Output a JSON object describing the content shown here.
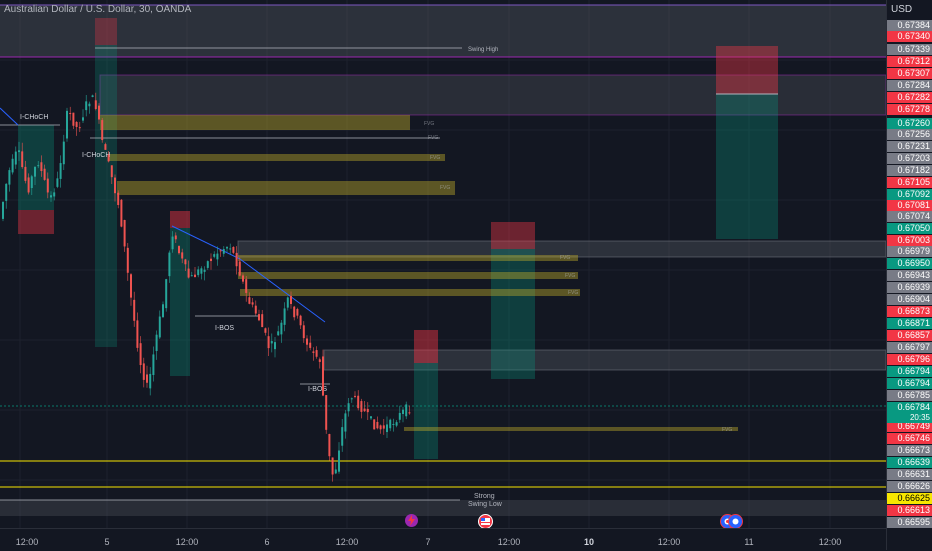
{
  "title": "Australian Dollar / U.S. Dollar, 30, OANDA",
  "currency": "USD",
  "countdown": "20:35",
  "price_scale": {
    "labels": [
      {
        "v": "0.67384",
        "c": "#787b86"
      },
      {
        "v": "0.67340",
        "c": "#f23645"
      },
      {
        "v": "0.67339",
        "c": "#787b86"
      },
      {
        "v": "0.67312",
        "c": "#f23645"
      },
      {
        "v": "0.67307",
        "c": "#f23645"
      },
      {
        "v": "0.67284",
        "c": "#787b86"
      },
      {
        "v": "0.67282",
        "c": "#f23645"
      },
      {
        "v": "0.67278",
        "c": "#f23645"
      },
      {
        "v": "0.67260",
        "c": "#089981"
      },
      {
        "v": "0.67256",
        "c": "#787b86"
      },
      {
        "v": "0.67231",
        "c": "#787b86"
      },
      {
        "v": "0.67203",
        "c": "#787b86"
      },
      {
        "v": "0.67182",
        "c": "#787b86"
      },
      {
        "v": "0.67105",
        "c": "#f23645"
      },
      {
        "v": "0.67092",
        "c": "#089981"
      },
      {
        "v": "0.67081",
        "c": "#f23645"
      },
      {
        "v": "0.67074",
        "c": "#787b86"
      },
      {
        "v": "0.67050",
        "c": "#089981"
      },
      {
        "v": "0.67003",
        "c": "#f23645"
      },
      {
        "v": "0.66979",
        "c": "#787b86"
      },
      {
        "v": "0.66950",
        "c": "#089981"
      },
      {
        "v": "0.66943",
        "c": "#787b86"
      },
      {
        "v": "0.66939",
        "c": "#787b86"
      },
      {
        "v": "0.66904",
        "c": "#787b86"
      },
      {
        "v": "0.66873",
        "c": "#f23645"
      },
      {
        "v": "0.66871",
        "c": "#089981"
      },
      {
        "v": "0.66857",
        "c": "#f23645"
      },
      {
        "v": "0.66797",
        "c": "#787b86"
      },
      {
        "v": "0.66796",
        "c": "#f23645"
      },
      {
        "v": "0.66794",
        "c": "#089981"
      },
      {
        "v": "0.66794",
        "c": "#089981"
      },
      {
        "v": "0.66785",
        "c": "#787b86"
      },
      {
        "v": "0.66784",
        "c": "#089981"
      },
      {
        "v": "0.66749",
        "c": "#f23645"
      },
      {
        "v": "0.66746",
        "c": "#f23645"
      },
      {
        "v": "0.66673",
        "c": "#787b86"
      },
      {
        "v": "0.66639",
        "c": "#089981"
      },
      {
        "v": "0.66631",
        "c": "#787b86"
      },
      {
        "v": "0.66626",
        "c": "#787b86"
      },
      {
        "v": "0.66625",
        "c": "#f7e600",
        "text_color": "#000000"
      },
      {
        "v": "0.66613",
        "c": "#f23645"
      },
      {
        "v": "0.66595",
        "c": "#787b86"
      }
    ]
  },
  "time_scale": {
    "labels": [
      {
        "t": "12:00",
        "bold": false
      },
      {
        "t": "5",
        "bold": false
      },
      {
        "t": "12:00",
        "bold": false
      },
      {
        "t": "6",
        "bold": false
      },
      {
        "t": "12:00",
        "bold": false
      },
      {
        "t": "7",
        "bold": false
      },
      {
        "t": "12:00",
        "bold": false
      },
      {
        "t": "10",
        "bold": true
      },
      {
        "t": "12:00",
        "bold": false
      },
      {
        "t": "11",
        "bold": false
      },
      {
        "t": "12:00",
        "bold": false
      }
    ]
  },
  "annotations": {
    "swing_high": "Swing High",
    "swing_low": "Swing Low",
    "strong": "Strong",
    "ichoch_1": "I-CHoCH",
    "ichoch_2": "I-CHoCH",
    "ibos_1": "I-BOS",
    "ibos_2": "I-BOS",
    "fvg": "FVG"
  },
  "colors": {
    "up": "#26a69a",
    "down": "#ef5350",
    "fvg": "#b5a52a",
    "premium_zone": "#787b86",
    "trendline": "#2962ff",
    "level": "#f7e600"
  }
}
